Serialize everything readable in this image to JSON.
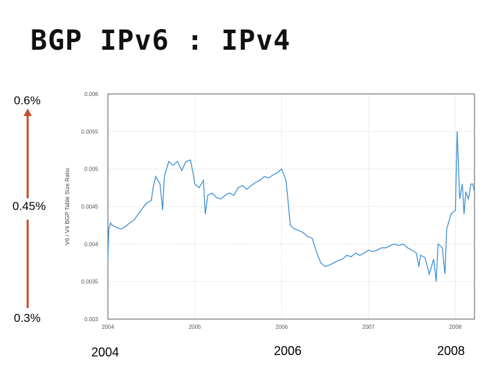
{
  "slide": {
    "title": "BGP IPv6 : IPv4",
    "annotations": {
      "top": "0.6%",
      "middle": "0.45%",
      "bottom": "0.3%"
    },
    "year_labels": [
      "2004",
      "2006",
      "2008"
    ],
    "arrow_color": "#c0502a"
  },
  "chart_data": {
    "type": "line",
    "title": "",
    "xlabel": "",
    "ylabel": "V6 / V4 BGP Table Size Ratio",
    "xlim": [
      2004.0,
      2008.22
    ],
    "ylim": [
      0.003,
      0.006
    ],
    "x_ticks": [
      2004,
      2005,
      2006,
      2007,
      2008
    ],
    "y_ticks": [
      0.003,
      0.0035,
      0.004,
      0.0045,
      0.005,
      0.0055,
      0.006
    ],
    "y_tick_labels": [
      "0.003",
      "0.0035",
      "0.004",
      "0.0045",
      "0.005",
      "0.0055",
      "0.006"
    ],
    "grid": true,
    "line_color": "#3b8fd4",
    "series": [
      {
        "x": [
          2004.0,
          2004.01,
          2004.03,
          2004.05,
          2004.1,
          2004.15,
          2004.2,
          2004.25,
          2004.3,
          2004.35,
          2004.4,
          2004.45,
          2004.5,
          2004.52,
          2004.55,
          2004.6,
          2004.63,
          2004.65,
          2004.7,
          2004.75,
          2004.8,
          2004.85,
          2004.9,
          2004.95,
          2004.98,
          2005.0,
          2005.05,
          2005.1,
          2005.12,
          2005.15,
          2005.2,
          2005.25,
          2005.3,
          2005.35,
          2005.4,
          2005.45,
          2005.5,
          2005.55,
          2005.6,
          2005.65,
          2005.7,
          2005.75,
          2005.8,
          2005.85,
          2005.9,
          2005.95,
          2006.0,
          2006.05,
          2006.08,
          2006.1,
          2006.15,
          2006.2,
          2006.25,
          2006.3,
          2006.35,
          2006.4,
          2006.45,
          2006.5,
          2006.55,
          2006.6,
          2006.65,
          2006.7,
          2006.75,
          2006.8,
          2006.85,
          2006.9,
          2006.95,
          2007.0,
          2007.05,
          2007.1,
          2007.15,
          2007.2,
          2007.25,
          2007.3,
          2007.35,
          2007.4,
          2007.45,
          2007.5,
          2007.55,
          2007.58,
          2007.6,
          2007.65,
          2007.7,
          2007.75,
          2007.78,
          2007.8,
          2007.85,
          2007.88,
          2007.9,
          2007.95,
          2008.0,
          2008.02,
          2008.05,
          2008.08,
          2008.1,
          2008.12,
          2008.15,
          2008.18,
          2008.2,
          2008.22
        ],
        "y": [
          0.0038,
          0.0042,
          0.00428,
          0.00425,
          0.00422,
          0.0042,
          0.00423,
          0.00428,
          0.00432,
          0.0044,
          0.00448,
          0.00455,
          0.00458,
          0.00475,
          0.0049,
          0.0048,
          0.00445,
          0.0049,
          0.0051,
          0.00505,
          0.0051,
          0.00498,
          0.0051,
          0.00512,
          0.00495,
          0.0048,
          0.00475,
          0.00485,
          0.0044,
          0.00465,
          0.00468,
          0.00462,
          0.0046,
          0.00465,
          0.00468,
          0.00465,
          0.00475,
          0.00478,
          0.00473,
          0.00478,
          0.00482,
          0.00485,
          0.0049,
          0.00488,
          0.00492,
          0.00495,
          0.005,
          0.00485,
          0.0045,
          0.00425,
          0.0042,
          0.00418,
          0.00415,
          0.0041,
          0.00408,
          0.0039,
          0.00375,
          0.0037,
          0.00372,
          0.00375,
          0.00378,
          0.0038,
          0.00385,
          0.00383,
          0.00388,
          0.00385,
          0.00388,
          0.00392,
          0.0039,
          0.00392,
          0.00395,
          0.00395,
          0.00398,
          0.004,
          0.00398,
          0.004,
          0.00395,
          0.00392,
          0.00388,
          0.0037,
          0.00385,
          0.00382,
          0.0036,
          0.0038,
          0.0035,
          0.004,
          0.00395,
          0.0036,
          0.0042,
          0.0044,
          0.00445,
          0.0055,
          0.0046,
          0.0048,
          0.0044,
          0.0047,
          0.0046,
          0.0048,
          0.0048,
          0.0047
        ]
      }
    ]
  }
}
